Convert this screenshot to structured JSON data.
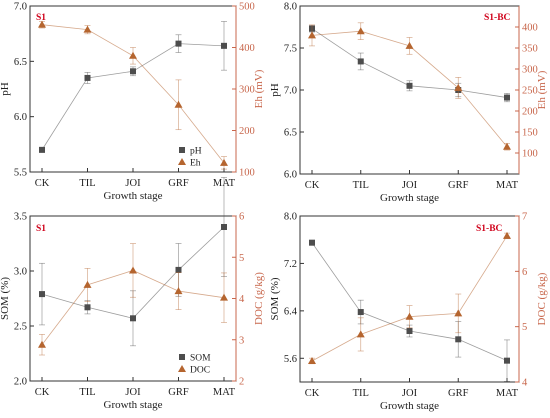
{
  "colors": {
    "left": "#4d4d4d",
    "right": "#b5652f",
    "right_axis": "#c8674c",
    "title": "#d0021b"
  },
  "chart_data": [
    {
      "type": "line",
      "title": "S1",
      "xlabel": "Growth stage",
      "ylabel_left": "pH",
      "ylabel_right": "Eh (mV)",
      "categories": [
        "CK",
        "TIL",
        "JOI",
        "GRF",
        "MAT"
      ],
      "ylim_left": [
        5.5,
        7.0
      ],
      "yticks_left": [
        "5.5",
        "6.0",
        "6.5",
        "7.0"
      ],
      "ylim_right": [
        100,
        500
      ],
      "yticks_right": [
        "100",
        "200",
        "300",
        "400",
        "500"
      ],
      "legend": {
        "placement": "bottom-right"
      },
      "series": [
        {
          "name": "pH",
          "axis": "left",
          "marker": "square",
          "values": [
            5.7,
            6.35,
            6.41,
            6.66,
            6.64
          ],
          "err": [
            0.0,
            0.05,
            0.04,
            0.08,
            0.22
          ]
        },
        {
          "name": "Eh",
          "axis": "right",
          "marker": "triangle",
          "values": [
            455,
            443,
            380,
            262,
            122
          ],
          "err": [
            8,
            10,
            20,
            60,
            15
          ]
        }
      ]
    },
    {
      "type": "line",
      "title": "S1-BC",
      "xlabel": "Growth stage",
      "ylabel_left": "pH",
      "ylabel_right": "Eh (mV)",
      "categories": [
        "CK",
        "TIL",
        "JOI",
        "GRF",
        "MAT"
      ],
      "ylim_left": [
        6.0,
        8.0
      ],
      "yticks_left": [
        "6.0",
        "6.5",
        "7.0",
        "7.5",
        "8.0"
      ],
      "ylim_right": [
        50,
        450
      ],
      "yticks_right": [
        "100",
        "150",
        "200",
        "250",
        "300",
        "350",
        "400"
      ],
      "series": [
        {
          "name": "pH",
          "axis": "left",
          "marker": "square",
          "values": [
            7.73,
            7.34,
            7.05,
            7.0,
            6.91
          ],
          "err": [
            0.04,
            0.1,
            0.06,
            0.08,
            0.05
          ]
        },
        {
          "name": "Eh",
          "axis": "right",
          "marker": "triangle",
          "values": [
            380,
            390,
            355,
            255,
            115
          ],
          "err": [
            25,
            20,
            20,
            25,
            8
          ]
        }
      ]
    },
    {
      "type": "line",
      "title": "S1",
      "xlabel": "Growth stage",
      "ylabel_left": "SOM (%)",
      "ylabel_right": "DOC (g/kg)",
      "categories": [
        "CK",
        "TIL",
        "JOI",
        "GRF",
        "MAT"
      ],
      "ylim_left": [
        2.0,
        3.5
      ],
      "yticks_left": [
        "2.0",
        "2.5",
        "3.0",
        "3.5"
      ],
      "ylim_right": [
        2,
        6
      ],
      "yticks_right": [
        "2",
        "3",
        "4",
        "5",
        "6"
      ],
      "legend": {
        "placement": "bottom-right"
      },
      "series": [
        {
          "name": "SOM",
          "axis": "left",
          "marker": "square",
          "values": [
            2.79,
            2.67,
            2.57,
            3.01,
            3.4
          ],
          "err": [
            0.28,
            0.06,
            0.25,
            0.24,
            0.45
          ]
        },
        {
          "name": "DOC",
          "axis": "right",
          "marker": "triangle",
          "values": [
            2.88,
            4.33,
            4.68,
            4.18,
            4.02
          ],
          "err": [
            0.25,
            0.4,
            0.65,
            0.45,
            0.6
          ]
        }
      ]
    },
    {
      "type": "line",
      "title": "S1-BC",
      "xlabel": "Growth stage",
      "ylabel_left": "SOM (%)",
      "ylabel_right": "DOC (g/kg)",
      "categories": [
        "CK",
        "TIL",
        "JOI",
        "GRF",
        "MAT"
      ],
      "ylim_left": [
        5.2,
        8.0
      ],
      "yticks_left": [
        "5.6",
        "6.4",
        "7.2",
        "8.0"
      ],
      "ylim_right": [
        4,
        7
      ],
      "yticks_right": [
        "4",
        "5",
        "6",
        "7"
      ],
      "series": [
        {
          "name": "SOM",
          "axis": "left",
          "marker": "square",
          "values": [
            7.55,
            6.38,
            6.06,
            5.92,
            5.56
          ],
          "err": [
            0.0,
            0.2,
            0.1,
            0.3,
            0.35
          ]
        },
        {
          "name": "DOC",
          "axis": "right",
          "marker": "triangle",
          "values": [
            4.38,
            4.86,
            5.18,
            5.24,
            6.64
          ],
          "err": [
            0.05,
            0.3,
            0.2,
            0.35,
            0.05
          ]
        }
      ]
    }
  ]
}
